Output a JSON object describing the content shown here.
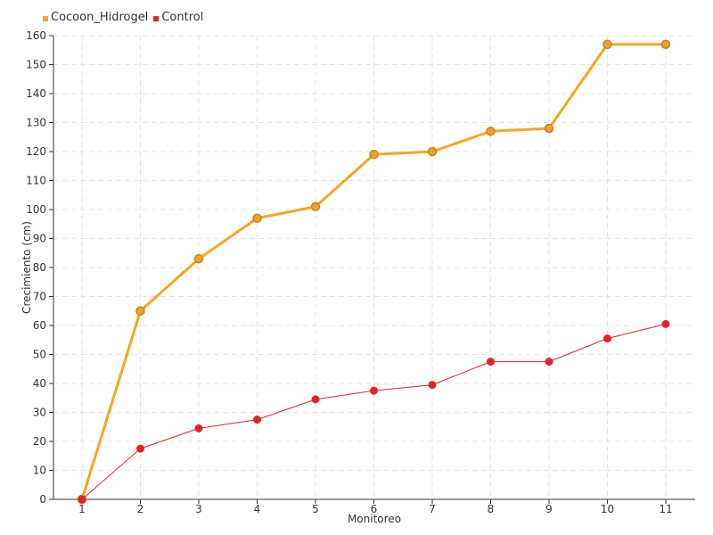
{
  "chart_data": {
    "type": "line",
    "title": "",
    "xlabel": "Monitoreo",
    "ylabel": "Crecimiento (cm)",
    "categories": [
      "1",
      "2",
      "3",
      "4",
      "5",
      "6",
      "7",
      "8",
      "9",
      "10",
      "11"
    ],
    "ylim": [
      0,
      160
    ],
    "ytick_step": 10,
    "grid": true,
    "legend_position": "top-left",
    "series": [
      {
        "name": "Cocoon_Hidrogel",
        "color": "#f5a623",
        "marker_fill": "#f0a030",
        "marker_stroke": "#c8841a",
        "values": [
          0,
          65,
          83,
          97,
          101,
          119,
          120,
          127,
          128,
          157,
          157
        ]
      },
      {
        "name": "Control",
        "color": "#e2222b",
        "marker_fill": "#e2222b",
        "marker_stroke": "#e2222b",
        "values": [
          0,
          17.5,
          24.5,
          27.5,
          34.5,
          37.5,
          39.5,
          47.5,
          47.5,
          55.5,
          60.5
        ]
      }
    ]
  }
}
